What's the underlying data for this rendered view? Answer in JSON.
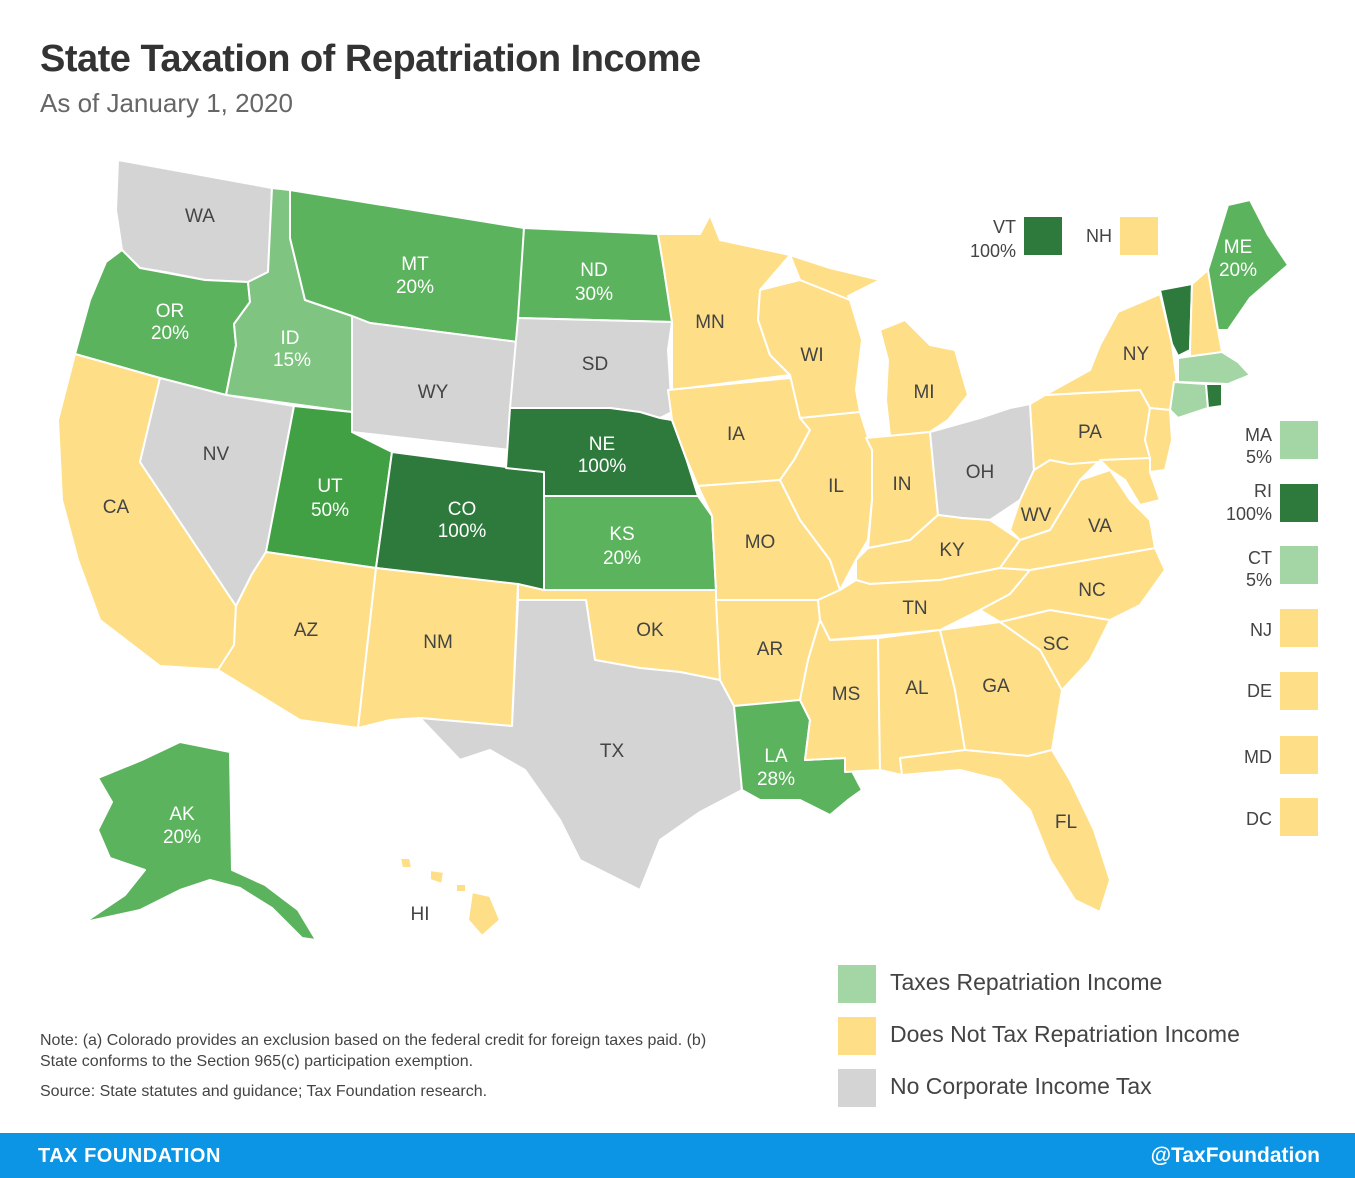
{
  "title": "State Taxation of Repatriation Income",
  "subtitle": "As of January 1, 2020",
  "colors": {
    "taxes_light": "#a3d6a4",
    "taxes_15": "#7fc481",
    "taxes_20": "#5cb35e",
    "taxes_50": "#41a044",
    "taxes_100": "#2e7a3c",
    "no_tax": "#fedf87",
    "no_cit": "#d4d4d4"
  },
  "states": {
    "WA": {
      "label": "WA",
      "rate": ""
    },
    "OR": {
      "label": "OR",
      "rate": "20%"
    },
    "CA": {
      "label": "CA",
      "rate": ""
    },
    "ID": {
      "label": "ID",
      "rate": "15%"
    },
    "NV": {
      "label": "NV",
      "rate": ""
    },
    "MT": {
      "label": "MT",
      "rate": "20%"
    },
    "WY": {
      "label": "WY",
      "rate": ""
    },
    "UT": {
      "label": "UT",
      "rate": "50%"
    },
    "AZ": {
      "label": "AZ",
      "rate": ""
    },
    "CO": {
      "label": "CO",
      "rate": "100%"
    },
    "NM": {
      "label": "NM",
      "rate": ""
    },
    "ND": {
      "label": "ND",
      "rate": "30%"
    },
    "SD": {
      "label": "SD",
      "rate": ""
    },
    "NE": {
      "label": "NE",
      "rate": "100%"
    },
    "KS": {
      "label": "KS",
      "rate": "20%"
    },
    "OK": {
      "label": "OK",
      "rate": ""
    },
    "TX": {
      "label": "TX",
      "rate": ""
    },
    "MN": {
      "label": "MN",
      "rate": ""
    },
    "IA": {
      "label": "IA",
      "rate": ""
    },
    "MO": {
      "label": "MO",
      "rate": ""
    },
    "AR": {
      "label": "AR",
      "rate": ""
    },
    "LA": {
      "label": "LA",
      "rate": "28%"
    },
    "WI": {
      "label": "WI",
      "rate": ""
    },
    "IL": {
      "label": "IL",
      "rate": ""
    },
    "MI": {
      "label": "MI",
      "rate": ""
    },
    "IN": {
      "label": "IN",
      "rate": ""
    },
    "OH": {
      "label": "OH",
      "rate": ""
    },
    "KY": {
      "label": "KY",
      "rate": ""
    },
    "TN": {
      "label": "TN",
      "rate": ""
    },
    "MS": {
      "label": "MS",
      "rate": ""
    },
    "AL": {
      "label": "AL",
      "rate": ""
    },
    "GA": {
      "label": "GA",
      "rate": ""
    },
    "FL": {
      "label": "FL",
      "rate": ""
    },
    "SC": {
      "label": "SC",
      "rate": ""
    },
    "NC": {
      "label": "NC",
      "rate": ""
    },
    "VA": {
      "label": "VA",
      "rate": ""
    },
    "WV": {
      "label": "WV",
      "rate": ""
    },
    "PA": {
      "label": "PA",
      "rate": ""
    },
    "NY": {
      "label": "NY",
      "rate": ""
    },
    "ME": {
      "label": "ME",
      "rate": "20%"
    },
    "AK": {
      "label": "AK",
      "rate": "20%"
    },
    "HI": {
      "label": "HI",
      "rate": ""
    }
  },
  "small_states": {
    "VT": {
      "label": "VT",
      "rate": "100%"
    },
    "NH": {
      "label": "NH",
      "rate": ""
    },
    "MA": {
      "label": "MA",
      "rate": "5%"
    },
    "RI": {
      "label": "RI",
      "rate": "100%"
    },
    "CT": {
      "label": "CT",
      "rate": "5%"
    },
    "NJ": {
      "label": "NJ",
      "rate": ""
    },
    "DE": {
      "label": "DE",
      "rate": ""
    },
    "MD": {
      "label": "MD",
      "rate": ""
    },
    "DC": {
      "label": "DC",
      "rate": ""
    }
  },
  "legend": [
    {
      "label": "Taxes Repatriation Income",
      "color": "#a3d6a4"
    },
    {
      "label": "Does Not Tax Repatriation Income",
      "color": "#fedf87"
    },
    {
      "label": "No Corporate Income Tax",
      "color": "#d4d4d4"
    }
  ],
  "note": "Note: (a) Colorado provides an exclusion based on the federal credit for foreign taxes paid. (b) State conforms to the Section 965(c) participation exemption.",
  "source": "Source: State statutes and guidance; Tax Foundation research.",
  "footer": {
    "brand": "TAX FOUNDATION",
    "handle": "@TaxFoundation"
  }
}
